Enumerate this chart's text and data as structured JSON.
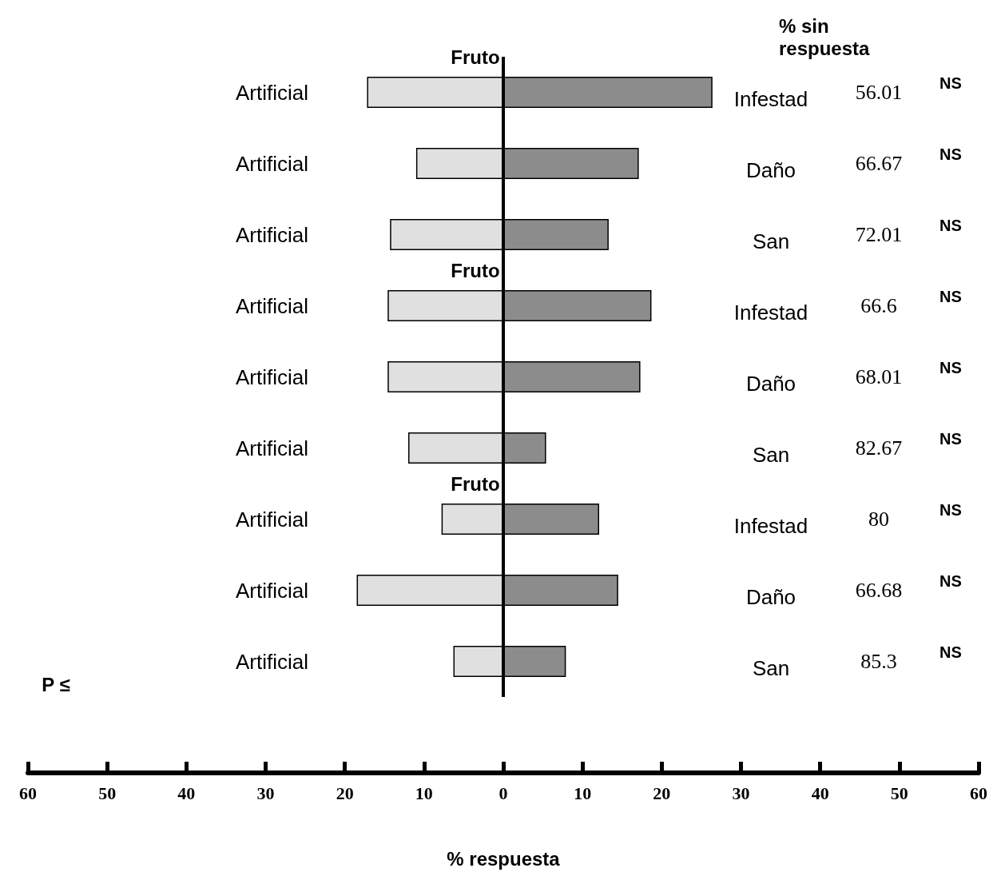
{
  "chart_data": {
    "type": "bar",
    "orientation": "horizontal",
    "xlabel": "% respuesta",
    "categories": [
      "Artificial",
      "Artificial",
      "Artificial",
      "Artificial",
      "Artificial",
      "Artificial",
      "Artificial",
      "Artificial",
      "Artificial"
    ],
    "series": [
      {
        "color": "#e0e0e0",
        "values": [
          -17.2,
          -11.0,
          -14.3,
          -14.6,
          -14.6,
          -12.0,
          -7.8,
          -18.5,
          -6.3
        ]
      },
      {
        "color": "#8c8c8c",
        "values": [
          26.4,
          17.1,
          13.3,
          18.7,
          17.3,
          5.4,
          12.1,
          14.5,
          7.9
        ]
      }
    ],
    "xlim": [
      -60,
      60
    ],
    "xticks": [
      {
        "value": -60,
        "label": "60"
      },
      {
        "value": -50,
        "label": "50"
      },
      {
        "value": -40,
        "label": "40"
      },
      {
        "value": -30,
        "label": "30"
      },
      {
        "value": -20,
        "label": "20"
      },
      {
        "value": -10,
        "label": "10"
      },
      0,
      10,
      20,
      30,
      40,
      50,
      60
    ],
    "ref_lines": [
      {
        "axis": "x",
        "value": 0,
        "color": "#000000"
      }
    ],
    "grid": false,
    "stacked": true,
    "annotations": [
      "% sin respuesta",
      "Fruto",
      "Fruto",
      "Fruto",
      "Infestad",
      "Daño",
      "San",
      "Infestad",
      "Daño",
      "San",
      "Infestad",
      "Daño",
      "San",
      "56.01",
      "66.67",
      "72.01",
      "66.6",
      "68.01",
      "82.67",
      "80",
      "66.68",
      "85.3",
      "NS",
      "NS",
      "NS",
      "NS",
      "NS",
      "NS",
      "NS",
      "NS",
      "NS",
      "P ≤"
    ]
  }
}
